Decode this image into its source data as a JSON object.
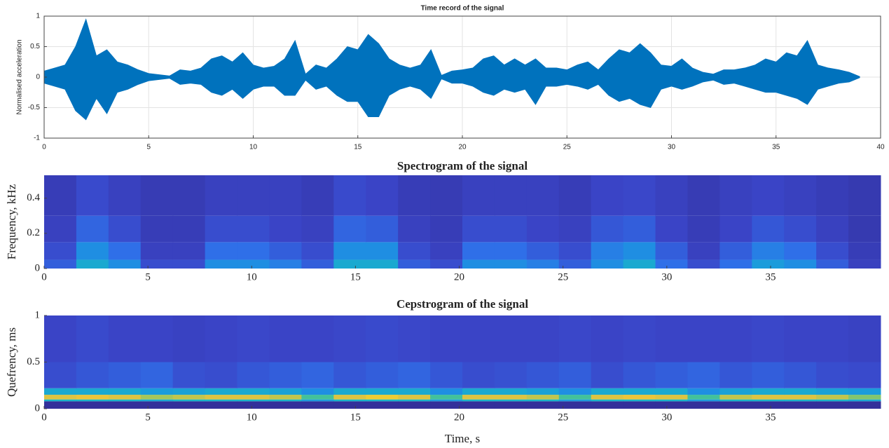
{
  "chart_data": [
    {
      "type": "waveform",
      "title": "Time record of the signal",
      "ylabel": "Normalised acceleration",
      "x": [
        0,
        0.5,
        1,
        1.5,
        2,
        2.5,
        3,
        3.5,
        4,
        4.5,
        5,
        5.5,
        6,
        6.5,
        7,
        7.5,
        8,
        8.5,
        9,
        9.5,
        10,
        10.5,
        11,
        11.5,
        12,
        12.5,
        13,
        13.5,
        14,
        14.5,
        15,
        15.5,
        16,
        16.5,
        17,
        17.5,
        18,
        18.5,
        19,
        19.5,
        20,
        20.5,
        21,
        21.5,
        22,
        22.5,
        23,
        23.5,
        24,
        24.5,
        25,
        25.5,
        26,
        26.5,
        27,
        27.5,
        28,
        28.5,
        29,
        29.5,
        30,
        30.5,
        31,
        31.5,
        32,
        32.5,
        33,
        33.5,
        34,
        34.5,
        35,
        35.5,
        36,
        36.5,
        37,
        37.5,
        38,
        38.5,
        39
      ],
      "series": [
        {
          "color": "#0072bd",
          "values": [
            0.1,
            0.15,
            0.2,
            0.5,
            0.95,
            0.35,
            0.45,
            0.25,
            0.2,
            0.12,
            0.06,
            0.04,
            0.02,
            0.12,
            0.1,
            0.15,
            0.3,
            0.35,
            0.25,
            0.4,
            0.2,
            0.15,
            0.18,
            0.3,
            0.6,
            0.05,
            0.2,
            0.15,
            0.3,
            0.5,
            0.45,
            0.7,
            0.55,
            0.3,
            0.2,
            0.15,
            0.2,
            0.45,
            0.03,
            0.1,
            0.12,
            0.15,
            0.3,
            0.35,
            0.2,
            0.3,
            0.2,
            0.3,
            0.15,
            0.15,
            0.12,
            0.2,
            0.25,
            0.12,
            0.3,
            0.45,
            0.4,
            0.55,
            0.4,
            0.2,
            0.18,
            0.3,
            0.15,
            0.08,
            0.05,
            0.12,
            0.12,
            0.15,
            0.2,
            0.3,
            0.25,
            0.4,
            0.35,
            0.6,
            0.2,
            0.15,
            0.12,
            0.08,
            0.01
          ]
        },
        {
          "color": "#0072bd",
          "values": [
            -0.1,
            -0.15,
            -0.2,
            -0.55,
            -0.7,
            -0.35,
            -0.6,
            -0.25,
            -0.2,
            -0.12,
            -0.06,
            -0.04,
            -0.02,
            -0.12,
            -0.1,
            -0.12,
            -0.25,
            -0.3,
            -0.2,
            -0.35,
            -0.2,
            -0.15,
            -0.15,
            -0.3,
            -0.3,
            -0.05,
            -0.2,
            -0.15,
            -0.3,
            -0.4,
            -0.4,
            -0.65,
            -0.65,
            -0.3,
            -0.2,
            -0.15,
            -0.2,
            -0.35,
            -0.03,
            -0.1,
            -0.1,
            -0.15,
            -0.25,
            -0.3,
            -0.2,
            -0.25,
            -0.2,
            -0.45,
            -0.15,
            -0.15,
            -0.12,
            -0.15,
            -0.2,
            -0.12,
            -0.3,
            -0.4,
            -0.35,
            -0.45,
            -0.5,
            -0.2,
            -0.15,
            -0.2,
            -0.15,
            -0.08,
            -0.05,
            -0.12,
            -0.1,
            -0.15,
            -0.2,
            -0.25,
            -0.25,
            -0.3,
            -0.35,
            -0.45,
            -0.2,
            -0.15,
            -0.1,
            -0.08,
            -0.01
          ]
        }
      ],
      "xlim": [
        0,
        40
      ],
      "xticks": [
        0,
        5,
        10,
        15,
        20,
        25,
        30,
        35,
        40
      ],
      "ylim": [
        -1,
        1
      ],
      "yticks": [
        -1,
        -0.5,
        0,
        0.5,
        1
      ],
      "grid": true
    },
    {
      "type": "heatmap",
      "title": "Spectrogram of the signal",
      "ylabel": "Frequency, kHz",
      "xbins": [
        0,
        1.55,
        3.1,
        4.65,
        6.2,
        7.75,
        9.3,
        10.85,
        12.4,
        13.95,
        15.5,
        17.05,
        18.6,
        20.15,
        21.7,
        23.25,
        24.8,
        26.35,
        27.9,
        29.45,
        31,
        32.55,
        34.1,
        35.65,
        37.2,
        38.75,
        40.3
      ],
      "ybins": [
        0,
        0.05,
        0.15,
        0.3,
        0.53
      ],
      "z": [
        [
          0.2,
          0.45,
          0.35,
          0.15,
          0.15,
          0.35,
          0.35,
          0.3,
          0.2,
          0.45,
          0.45,
          0.2,
          0.15,
          0.35,
          0.35,
          0.3,
          0.2,
          0.35,
          0.45,
          0.25,
          0.15,
          0.25,
          0.4,
          0.35,
          0.2,
          0.1
        ],
        [
          0.15,
          0.35,
          0.25,
          0.1,
          0.1,
          0.25,
          0.25,
          0.2,
          0.15,
          0.35,
          0.35,
          0.15,
          0.1,
          0.25,
          0.25,
          0.2,
          0.15,
          0.3,
          0.35,
          0.2,
          0.1,
          0.2,
          0.3,
          0.25,
          0.15,
          0.08
        ],
        [
          0.1,
          0.22,
          0.15,
          0.08,
          0.08,
          0.15,
          0.15,
          0.12,
          0.1,
          0.22,
          0.2,
          0.1,
          0.08,
          0.15,
          0.15,
          0.12,
          0.1,
          0.18,
          0.2,
          0.12,
          0.08,
          0.12,
          0.18,
          0.15,
          0.1,
          0.06
        ],
        [
          0.08,
          0.14,
          0.1,
          0.07,
          0.07,
          0.1,
          0.1,
          0.1,
          0.08,
          0.14,
          0.12,
          0.08,
          0.07,
          0.1,
          0.1,
          0.1,
          0.08,
          0.12,
          0.13,
          0.1,
          0.07,
          0.1,
          0.12,
          0.1,
          0.08,
          0.06
        ]
      ],
      "colormap": [
        "#33309a",
        "#3a45c8",
        "#2f6fe8",
        "#1b96e0",
        "#19b5c6",
        "#4cc48f",
        "#a6c65a",
        "#e9c33c",
        "#f9f212"
      ],
      "clim": [
        0,
        1
      ],
      "xlim": [
        0,
        40.3
      ],
      "xticks": [
        0,
        5,
        10,
        15,
        20,
        25,
        30,
        35
      ],
      "ylim": [
        0,
        0.53
      ],
      "yticks": [
        0,
        0.2,
        0.4
      ]
    },
    {
      "type": "heatmap",
      "title": "Cepstrogram of the signal",
      "ylabel": "Quefrency, ms",
      "xlabel": "Time, s",
      "xbins": [
        0,
        1.55,
        3.1,
        4.65,
        6.2,
        7.75,
        9.3,
        10.85,
        12.4,
        13.95,
        15.5,
        17.05,
        18.6,
        20.15,
        21.7,
        23.25,
        24.8,
        26.35,
        27.9,
        29.45,
        31,
        32.55,
        34.1,
        35.65,
        37.2,
        38.75,
        40.3
      ],
      "ybins": [
        0,
        0.08,
        0.1,
        0.15,
        0.22,
        0.5,
        1
      ],
      "z": [
        [
          0,
          0,
          0,
          0,
          0,
          0,
          0,
          0,
          0,
          0,
          0,
          0,
          0,
          0,
          0,
          0,
          0,
          0,
          0,
          0,
          0,
          0,
          0,
          0,
          0,
          0
        ],
        [
          0.5,
          0.5,
          0.5,
          0.45,
          0.5,
          0.5,
          0.5,
          0.5,
          0.4,
          0.5,
          0.5,
          0.5,
          0.4,
          0.5,
          0.5,
          0.5,
          0.4,
          0.5,
          0.5,
          0.5,
          0.4,
          0.5,
          0.5,
          0.5,
          0.5,
          0.45
        ],
        [
          0.85,
          0.88,
          0.85,
          0.75,
          0.8,
          0.85,
          0.85,
          0.8,
          0.6,
          0.85,
          0.9,
          0.85,
          0.6,
          0.85,
          0.85,
          0.8,
          0.6,
          0.85,
          0.88,
          0.85,
          0.6,
          0.8,
          0.85,
          0.85,
          0.8,
          0.7
        ],
        [
          0.45,
          0.45,
          0.45,
          0.4,
          0.42,
          0.45,
          0.45,
          0.42,
          0.35,
          0.45,
          0.45,
          0.45,
          0.35,
          0.45,
          0.45,
          0.42,
          0.35,
          0.45,
          0.45,
          0.45,
          0.35,
          0.42,
          0.45,
          0.45,
          0.42,
          0.4
        ],
        [
          0.15,
          0.18,
          0.2,
          0.22,
          0.16,
          0.15,
          0.18,
          0.2,
          0.22,
          0.18,
          0.2,
          0.22,
          0.18,
          0.15,
          0.16,
          0.18,
          0.2,
          0.15,
          0.18,
          0.2,
          0.22,
          0.18,
          0.2,
          0.18,
          0.15,
          0.14
        ],
        [
          0.12,
          0.14,
          0.12,
          0.12,
          0.11,
          0.12,
          0.13,
          0.12,
          0.12,
          0.13,
          0.14,
          0.13,
          0.12,
          0.12,
          0.12,
          0.12,
          0.13,
          0.12,
          0.13,
          0.12,
          0.12,
          0.12,
          0.13,
          0.12,
          0.12,
          0.11
        ]
      ],
      "colormap": [
        "#33309a",
        "#3a45c8",
        "#2f6fe8",
        "#1b96e0",
        "#19b5c6",
        "#4cc48f",
        "#a6c65a",
        "#e9c33c",
        "#f9f212"
      ],
      "clim": [
        0,
        1
      ],
      "xlim": [
        0,
        40.3
      ],
      "xticks": [
        0,
        5,
        10,
        15,
        20,
        25,
        30,
        35
      ],
      "ylim": [
        0,
        1
      ],
      "yticks": [
        0,
        0.5,
        1
      ]
    }
  ]
}
